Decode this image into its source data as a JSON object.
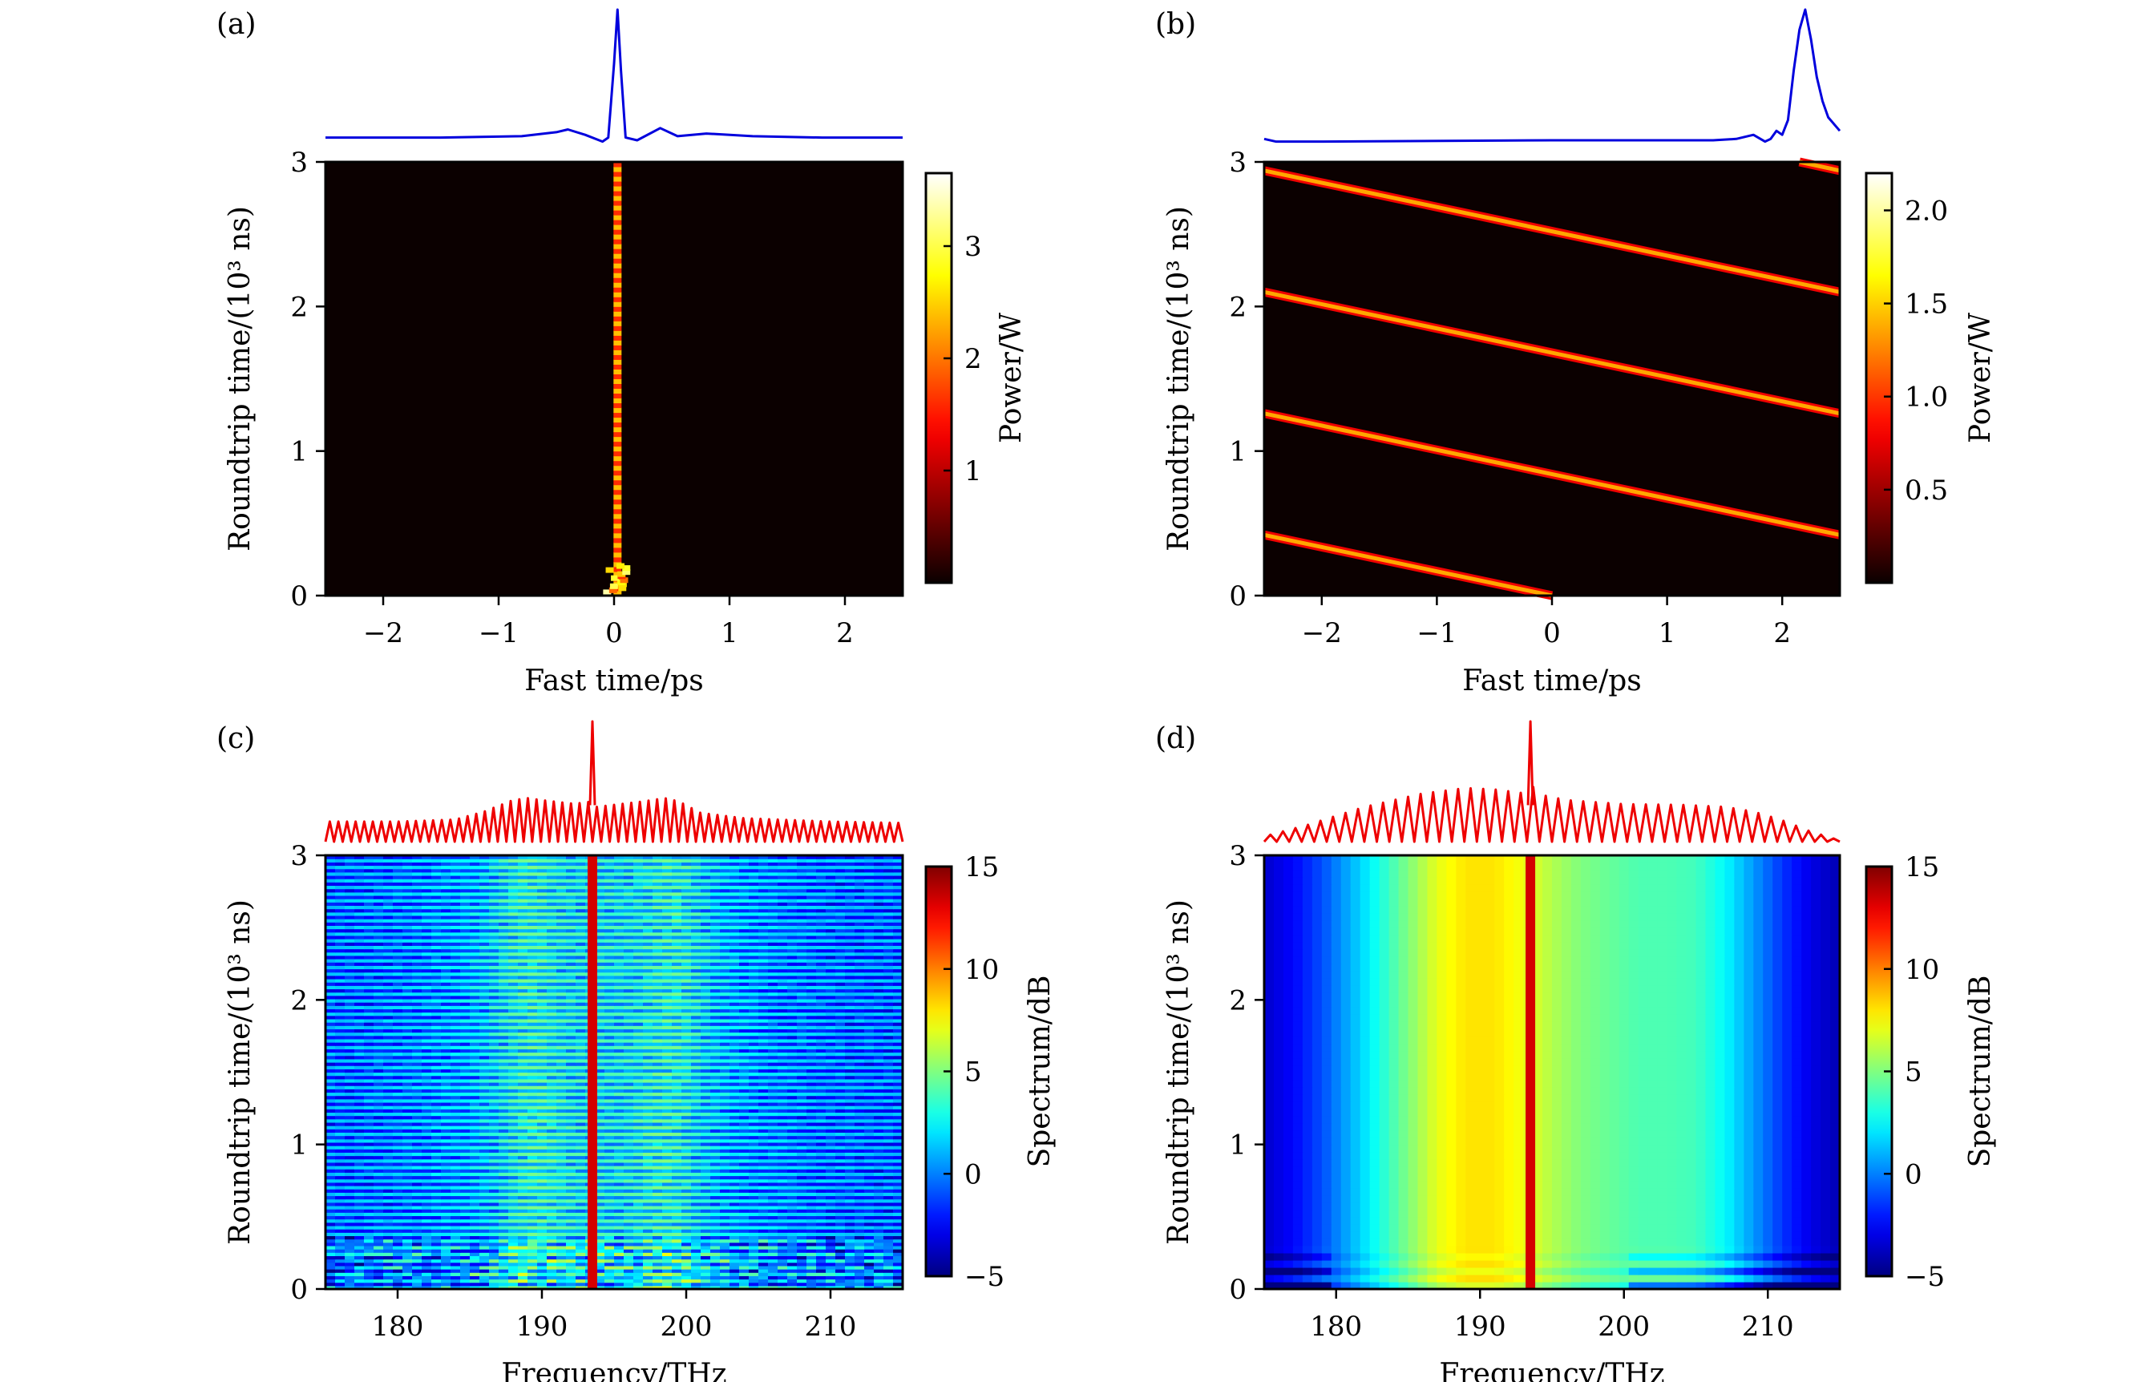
{
  "figure": {
    "panels": [
      "a",
      "b",
      "c",
      "d"
    ]
  },
  "chart_data": [
    {
      "id": "a",
      "type": "heatmap",
      "panel_label": "(a)",
      "xlabel": "Fast time/ps",
      "ylabel": "Roundtrip time/(10³ ns)",
      "xlim": [
        -2.5,
        2.5
      ],
      "ylim": [
        0,
        3
      ],
      "xticks": [
        -2,
        -1,
        0,
        1,
        2
      ],
      "xtick_labels": [
        "−2",
        "−1",
        "0",
        "1",
        "2"
      ],
      "yticks": [
        0,
        1,
        2,
        3
      ],
      "ytick_labels": [
        "0",
        "1",
        "2",
        "3"
      ],
      "colormap": "hot",
      "colorbar": {
        "label": "Power/W",
        "range": [
          0,
          3.65
        ],
        "ticks": [
          1,
          2,
          3
        ],
        "tick_labels": [
          "1",
          "2",
          "3"
        ]
      },
      "description": "Stationary soliton at fast time ≈ 0.03 ps persisting over all roundtrips; transient breathing near roundtrip 0–0.2",
      "soliton_track": {
        "x_center": 0.03,
        "t_start": 0,
        "t_end": 3,
        "peak_power": 3.6
      },
      "top_trace": {
        "color": "#0000dd",
        "description": "Temporal intensity profile at final roundtrip",
        "x": [
          -2.5,
          -1.5,
          -0.8,
          -0.5,
          -0.4,
          -0.25,
          -0.1,
          -0.05,
          0.0,
          0.03,
          0.06,
          0.1,
          0.2,
          0.4,
          0.55,
          0.8,
          1.2,
          1.8,
          2.5
        ],
        "y": [
          0.05,
          0.05,
          0.06,
          0.09,
          0.11,
          0.07,
          0.02,
          0.05,
          0.6,
          1.0,
          0.55,
          0.05,
          0.03,
          0.12,
          0.06,
          0.08,
          0.06,
          0.05,
          0.05
        ]
      }
    },
    {
      "id": "b",
      "type": "heatmap",
      "panel_label": "(b)",
      "xlabel": "Fast time/ps",
      "ylabel": "Roundtrip time/(10³ ns)",
      "xlim": [
        -2.5,
        2.5
      ],
      "ylim": [
        0,
        3
      ],
      "xticks": [
        -2,
        -1,
        0,
        1,
        2
      ],
      "xtick_labels": [
        "−2",
        "−1",
        "0",
        "1",
        "2"
      ],
      "yticks": [
        0,
        1,
        2,
        3
      ],
      "ytick_labels": [
        "0",
        "1",
        "2",
        "3"
      ],
      "colormap": "hot",
      "colorbar": {
        "label": "Power/W",
        "range": [
          0,
          2.2
        ],
        "ticks": [
          0.5,
          1.0,
          1.5,
          2.0
        ],
        "tick_labels": [
          "0.5",
          "1.0",
          "1.5",
          "2.0"
        ]
      },
      "description": "Drifting soliton: pulse moves toward negative fast time and wraps around periodically",
      "soliton_tracks": [
        {
          "x0": 0.0,
          "t0": 0.0,
          "x1": -2.5,
          "t1": 0.42
        },
        {
          "x0": 2.5,
          "t0": 0.42,
          "x1": -2.5,
          "t1": 1.26
        },
        {
          "x0": 2.5,
          "t0": 1.26,
          "x1": -2.5,
          "t1": 2.1
        },
        {
          "x0": 2.5,
          "t0": 2.1,
          "x1": -2.5,
          "t1": 2.94
        },
        {
          "x0": 2.5,
          "t0": 2.94,
          "x1": 2.15,
          "t1": 3.0
        }
      ],
      "top_trace": {
        "color": "#0000dd",
        "description": "Temporal intensity profile at final roundtrip",
        "x": [
          -2.5,
          -2.4,
          -2.0,
          0.0,
          1.4,
          1.6,
          1.75,
          1.85,
          1.9,
          1.95,
          2.0,
          2.05,
          2.1,
          2.15,
          2.2,
          2.25,
          2.3,
          2.35,
          2.4,
          2.5
        ],
        "y": [
          0.04,
          0.02,
          0.02,
          0.03,
          0.03,
          0.04,
          0.07,
          0.02,
          0.04,
          0.1,
          0.07,
          0.18,
          0.55,
          0.85,
          1.0,
          0.78,
          0.5,
          0.32,
          0.2,
          0.1
        ]
      }
    },
    {
      "id": "c",
      "type": "heatmap",
      "panel_label": "(c)",
      "xlabel": "Frequency/THz",
      "ylabel": "Roundtrip time/(10³ ns)",
      "xlim": [
        175,
        215
      ],
      "ylim": [
        0,
        3
      ],
      "xticks": [
        180,
        190,
        200,
        210
      ],
      "xtick_labels": [
        "180",
        "190",
        "200",
        "210"
      ],
      "yticks": [
        0,
        1,
        2,
        3
      ],
      "ytick_labels": [
        "0",
        "1",
        "2",
        "3"
      ],
      "colormap": "jet",
      "colorbar": {
        "label": "Spectrum/dB",
        "range": [
          -5,
          15
        ],
        "ticks": [
          -5,
          0,
          5,
          10,
          15
        ],
        "tick_labels": [
          "−5",
          "0",
          "5",
          "10",
          "15"
        ]
      },
      "pump_line_THz": 193.5,
      "description": "Comb spectrum evolution; two side lobes near 189 and 199 THz; pump line at 193.5 THz",
      "top_trace": {
        "color": "#ee0000",
        "description": "Comb line envelope (dB, relative)",
        "comb_lines": 67,
        "envelope_x": [
          175,
          180,
          184,
          186,
          188,
          189,
          190,
          192,
          193.2,
          193.5,
          193.8,
          195,
          197,
          198.5,
          199.5,
          201,
          204,
          210,
          215
        ],
        "envelope_y": [
          0.3,
          0.3,
          0.33,
          0.45,
          0.62,
          0.65,
          0.62,
          0.57,
          0.58,
          1.0,
          0.52,
          0.55,
          0.6,
          0.65,
          0.6,
          0.43,
          0.35,
          0.3,
          0.28
        ]
      }
    },
    {
      "id": "d",
      "type": "heatmap",
      "panel_label": "(d)",
      "xlabel": "Frequency/THz",
      "ylabel": "Roundtrip time/(10³ ns)",
      "xlim": [
        175,
        215
      ],
      "ylim": [
        0,
        3
      ],
      "xticks": [
        180,
        190,
        200,
        210
      ],
      "xtick_labels": [
        "180",
        "190",
        "200",
        "210"
      ],
      "yticks": [
        0,
        1,
        2,
        3
      ],
      "ytick_labels": [
        "0",
        "1",
        "2",
        "3"
      ],
      "colormap": "jet",
      "colorbar": {
        "label": "Spectrum/dB",
        "range": [
          -5,
          15
        ],
        "ticks": [
          -5,
          0,
          5,
          10,
          15
        ],
        "tick_labels": [
          "−5",
          "0",
          "5",
          "10",
          "15"
        ]
      },
      "pump_line_THz": 193.5,
      "description": "Stable smooth comb spectrum, peak near 188–190 THz; pump line at 193.5 THz",
      "column_profile_dB": {
        "x": [
          175,
          177,
          179,
          181,
          183,
          185,
          187,
          189,
          191,
          193,
          195,
          197,
          199,
          201,
          203,
          205,
          207,
          209,
          211,
          213,
          215
        ],
        "y": [
          -3.5,
          -2.5,
          -1,
          1,
          3,
          5,
          7,
          8,
          8,
          7.2,
          6,
          5,
          4.5,
          4,
          4,
          3.8,
          2.5,
          0.5,
          -1.5,
          -3,
          -4
        ]
      },
      "top_trace": {
        "color": "#ee0000",
        "description": "Comb line envelope (relative)",
        "comb_lines": 46,
        "envelope_x": [
          175,
          178,
          182,
          186,
          189,
          191,
          193.2,
          193.5,
          193.8,
          196,
          200,
          204,
          207,
          209,
          211,
          213,
          215
        ],
        "envelope_y": [
          0.08,
          0.25,
          0.52,
          0.72,
          0.8,
          0.78,
          0.72,
          1.0,
          0.72,
          0.62,
          0.56,
          0.55,
          0.52,
          0.45,
          0.32,
          0.15,
          0.02
        ]
      }
    }
  ]
}
